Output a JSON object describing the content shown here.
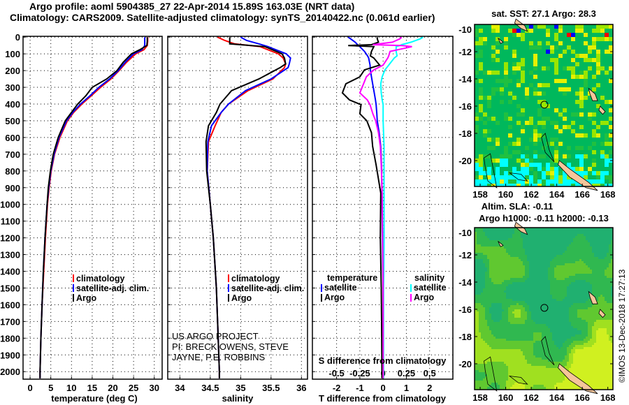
{
  "header": {
    "title_line1": "Argo profile: aoml 5904385_27 22-Apr-2014 15.89S 163.03E (NRT data)",
    "title_line2": "Climatology: CARS2009. Satellite-adjusted climatology: synTS_20140422.nc (0.061d earlier)"
  },
  "credits": {
    "project": "US ARGO PROJECT",
    "pi": "PI: BRECK OWENS, STEVE JAYNE, P.E. ROBBINS",
    "imos": "©IMOS 13-Dec-2018 17:27:13"
  },
  "colors": {
    "climatology": "#ff0000",
    "satellite": "#0000ff",
    "argo": "#000000",
    "sal_satellite": "#00ffff",
    "sal_argo": "#ff00ff"
  },
  "chart_data": [
    {
      "type": "line",
      "title": "",
      "xlabel": "temperature (deg C)",
      "ylabel": "",
      "xlim": [
        -1.7,
        31.9
      ],
      "ylim": [
        2045,
        -5
      ],
      "xticks": [
        "0",
        "5",
        "10",
        "15",
        "20",
        "25",
        "30"
      ],
      "yticks": [
        "0",
        "100",
        "200",
        "300",
        "400",
        "500",
        "600",
        "700",
        "800",
        "900",
        "1000",
        "1100",
        "1200",
        "1300",
        "1400",
        "1500",
        "1600",
        "1700",
        "1800",
        "1900",
        "2000"
      ],
      "grid": true,
      "legend": {
        "placement": "lower-center",
        "entries": [
          "climatology",
          "satellite-adj. clim.",
          "Argo"
        ]
      },
      "depth": [
        0,
        25,
        50,
        75,
        100,
        150,
        200,
        250,
        300,
        350,
        400,
        450,
        500,
        600,
        700,
        800,
        900,
        1000,
        1200,
        1400,
        1600,
        1800,
        2000,
        2040
      ],
      "series": [
        {
          "name": "climatology",
          "color_key": "climatology",
          "values": [
            28.4,
            28.4,
            28.3,
            27.5,
            25.5,
            23.3,
            21.5,
            19.5,
            17,
            14.8,
            12.5,
            10.5,
            9,
            7.2,
            5.9,
            5.1,
            4.6,
            4.2,
            3.7,
            3.3,
            2.9,
            2.6,
            2.4,
            2.4
          ]
        },
        {
          "name": "satellite-adj. clim.",
          "color_key": "satellite",
          "values": [
            27.7,
            27.7,
            27.7,
            27,
            25,
            23,
            21.3,
            19.2,
            16.6,
            14.5,
            12.2,
            10.3,
            8.8,
            7.0,
            5.8,
            5.0,
            4.5,
            4.1,
            3.6,
            3.2,
            2.9,
            2.6,
            2.4,
            2.4
          ]
        },
        {
          "name": "Argo",
          "color_key": "argo",
          "values": [
            28.3,
            28.3,
            28.2,
            26.5,
            24.5,
            22.5,
            21,
            18.5,
            15,
            13.5,
            11.5,
            10,
            8.5,
            6.8,
            5.6,
            4.9,
            4.4,
            4.1,
            3.6,
            3.2,
            2.9,
            2.6,
            2.4,
            2.4
          ]
        }
      ]
    },
    {
      "type": "line",
      "xlabel": "salinity",
      "xlim": [
        33.8,
        36.1
      ],
      "ylim": [
        2045,
        -5
      ],
      "xticks": [
        "34",
        "34.5",
        "35",
        "35.5",
        "36"
      ],
      "grid": true,
      "legend": {
        "placement": "lower-center",
        "entries": [
          "climatology",
          "satellite-adj. clim.",
          "Argo"
        ]
      },
      "depth": [
        0,
        20,
        40,
        57,
        100,
        125,
        160,
        182,
        250,
        320,
        400,
        450,
        530,
        625,
        800,
        1000,
        1200,
        1500,
        1800,
        2000,
        2040
      ],
      "series": [
        {
          "name": "climatology",
          "color_key": "climatology",
          "values": [
            34.62,
            34.74,
            34.9,
            35.32,
            35.62,
            35.7,
            35.74,
            35.72,
            35.53,
            35.12,
            34.8,
            34.68,
            34.58,
            34.47,
            34.45,
            34.5,
            34.55,
            34.6,
            34.63,
            34.65,
            34.65
          ]
        },
        {
          "name": "satellite-adj. clim.",
          "color_key": "satellite",
          "values": [
            35.0,
            35.1,
            35.3,
            35.45,
            35.75,
            35.82,
            35.8,
            35.78,
            35.5,
            35.08,
            34.8,
            34.68,
            34.52,
            34.46,
            34.45,
            34.5,
            34.55,
            34.6,
            34.63,
            34.65,
            34.65
          ]
        },
        {
          "name": "Argo",
          "color_key": "argo",
          "values": [
            34.82,
            34.82,
            34.82,
            35.4,
            35.68,
            35.72,
            35.74,
            35.65,
            35.3,
            34.85,
            34.66,
            34.6,
            34.47,
            34.43,
            34.44,
            34.5,
            34.55,
            34.6,
            34.63,
            34.65,
            34.65
          ]
        }
      ]
    },
    {
      "type": "line",
      "xlabel": "T difference from climatology",
      "xlabel2": "S difference from climatology",
      "xlim": [
        -3.04,
        3.0
      ],
      "xlim_s": [
        -0.76,
        0.75
      ],
      "ylim": [
        2045,
        -5
      ],
      "xticks": [
        "-2",
        "-1",
        "0",
        "1",
        "2"
      ],
      "xticks_s": [
        "-0.5",
        "-0.25",
        "0",
        "0.25",
        "0.5"
      ],
      "grid": true,
      "legend": {
        "placement": "lower-center",
        "temperature_title": "temperature",
        "salinity_title": "salinity",
        "entries": [
          "satellite",
          "Argo",
          "satellite",
          "Argo"
        ]
      },
      "depth": [
        0,
        10,
        30,
        45,
        50,
        57,
        85,
        112,
        125,
        167,
        196,
        237,
        279,
        333,
        375,
        404,
        458,
        500,
        571,
        654,
        765,
        932,
        1200,
        1500,
        1800,
        2000,
        2040
      ],
      "series": [
        {
          "name": "temperature satellite",
          "axis": "T",
          "color_key": "satellite",
          "values": [
            -1.5,
            -1.4,
            -1.2,
            -1.1,
            -1.05,
            -1.0,
            -0.8,
            -0.67,
            -0.62,
            -0.56,
            -0.55,
            -0.5,
            -0.45,
            -0.38,
            -0.33,
            -0.3,
            -0.27,
            -0.25,
            -0.17,
            -0.1,
            -0.07,
            -0.05,
            -0.03,
            0.0,
            0.0,
            0.0,
            0.0
          ]
        },
        {
          "name": "temperature Argo",
          "axis": "T",
          "color_key": "argo",
          "values": [
            -0.25,
            -0.25,
            -0.2,
            -0.5,
            -1.5,
            -0.4,
            -0.5,
            -0.55,
            -0.4,
            -0.15,
            -0.8,
            -1.0,
            -1.6,
            -1.75,
            -1.45,
            -0.95,
            -1.0,
            -0.7,
            -0.5,
            -0.45,
            -0.3,
            -0.1,
            -0.12,
            -0.08,
            -0.06,
            -0.05,
            -0.05
          ]
        },
        {
          "name": "salinity satellite",
          "axis": "S",
          "color_key": "sal_satellite",
          "values": [
            0.43,
            0.4,
            0.3,
            0.2,
            0.18,
            0.14,
            0.14,
            0.15,
            0.12,
            0.06,
            0.02,
            -0.01,
            -0.025,
            -0.02,
            -0.01,
            0.0,
            0.0,
            0.0,
            0.005,
            0.01,
            0.01,
            0.01,
            0.01,
            0.005,
            0.005,
            0.005,
            0.005
          ]
        },
        {
          "name": "salinity Argo",
          "axis": "S",
          "color_key": "sal_argo",
          "values": [
            0.2,
            0.18,
            0.1,
            -0.11,
            0.2,
            0.31,
            0.075,
            0.06,
            0.05,
            0.0,
            -0.1,
            -0.18,
            -0.21,
            -0.25,
            -0.17,
            -0.14,
            -0.11,
            -0.08,
            -0.05,
            -0.03,
            -0.02,
            -0.01,
            -0.005,
            0.0,
            0.0,
            0.0,
            0.0
          ]
        }
      ]
    },
    {
      "type": "heatmap",
      "title": "sat. SST: 27.1 Argo: 28.3",
      "xlim": [
        157.56,
        168.4
      ],
      "ylim": [
        -21.9,
        -10
      ],
      "xticks": [
        "158",
        "160",
        "162",
        "164",
        "166",
        "168"
      ],
      "yticks": [
        "-10",
        "-12",
        "-14",
        "-16",
        "-18",
        "-20"
      ],
      "marker": {
        "lon": 163.03,
        "lat": -15.89
      }
    },
    {
      "type": "heatmap",
      "title": "Altim. SLA: -0.11",
      "subtitle": "Argo h1000: -0.11 h2000: -0.13",
      "xlim": [
        157.56,
        168.4
      ],
      "ylim": [
        -21.9,
        -10
      ],
      "xticks": [
        "158",
        "160",
        "162",
        "164",
        "166",
        "168"
      ],
      "yticks": [
        "-10",
        "-12",
        "-14",
        "-16",
        "-18",
        "-20"
      ],
      "marker": {
        "lon": 163.03,
        "lat": -15.89
      }
    }
  ]
}
